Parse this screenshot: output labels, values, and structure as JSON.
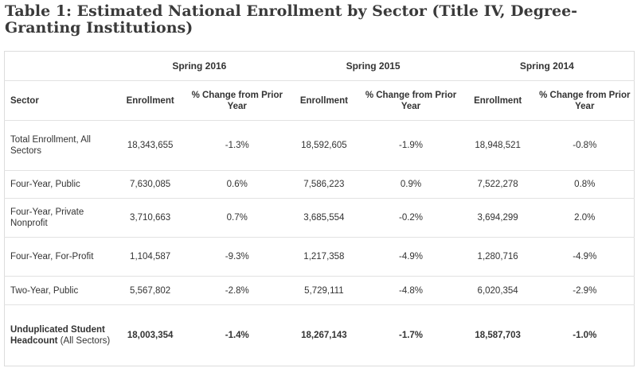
{
  "title": "Table 1: Estimated National Enrollment by Sector (Title IV, Degree-Granting Institutions)",
  "years": [
    "Spring 2016",
    "Spring 2015",
    "Spring 2014"
  ],
  "headers": {
    "sector": "Sector",
    "enrollment": "Enrollment",
    "pct_change": "% Change from Prior Year"
  },
  "rows": [
    {
      "sector": "Total Enrollment, All Sectors",
      "v": [
        "18,343,655",
        "-1.3%",
        "18,592,605",
        "-1.9%",
        "18,948,521",
        "-0.8%"
      ]
    },
    {
      "sector": "Four-Year, Public",
      "v": [
        "7,630,085",
        "0.6%",
        "7,586,223",
        "0.9%",
        "7,522,278",
        "0.8%"
      ]
    },
    {
      "sector": "Four-Year, Private Nonprofit",
      "v": [
        "3,710,663",
        "0.7%",
        "3,685,554",
        "-0.2%",
        "3,694,299",
        "2.0%"
      ]
    },
    {
      "sector": "Four-Year, For-Profit",
      "v": [
        "1,104,587",
        "-9.3%",
        "1,217,358",
        "-4.9%",
        "1,280,716",
        "-4.9%"
      ]
    },
    {
      "sector": "Two-Year, Public",
      "v": [
        "5,567,802",
        "-2.8%",
        "5,729,111",
        "-4.8%",
        "6,020,354",
        "-2.9%"
      ]
    }
  ],
  "total_row": {
    "sector_bold": "Unduplicated Student Headcount",
    "sector_rest": " (All Sectors)",
    "v": [
      "18,003,354",
      "-1.4%",
      "18,267,143",
      "-1.7%",
      "18,587,703",
      "-1.0%"
    ]
  }
}
